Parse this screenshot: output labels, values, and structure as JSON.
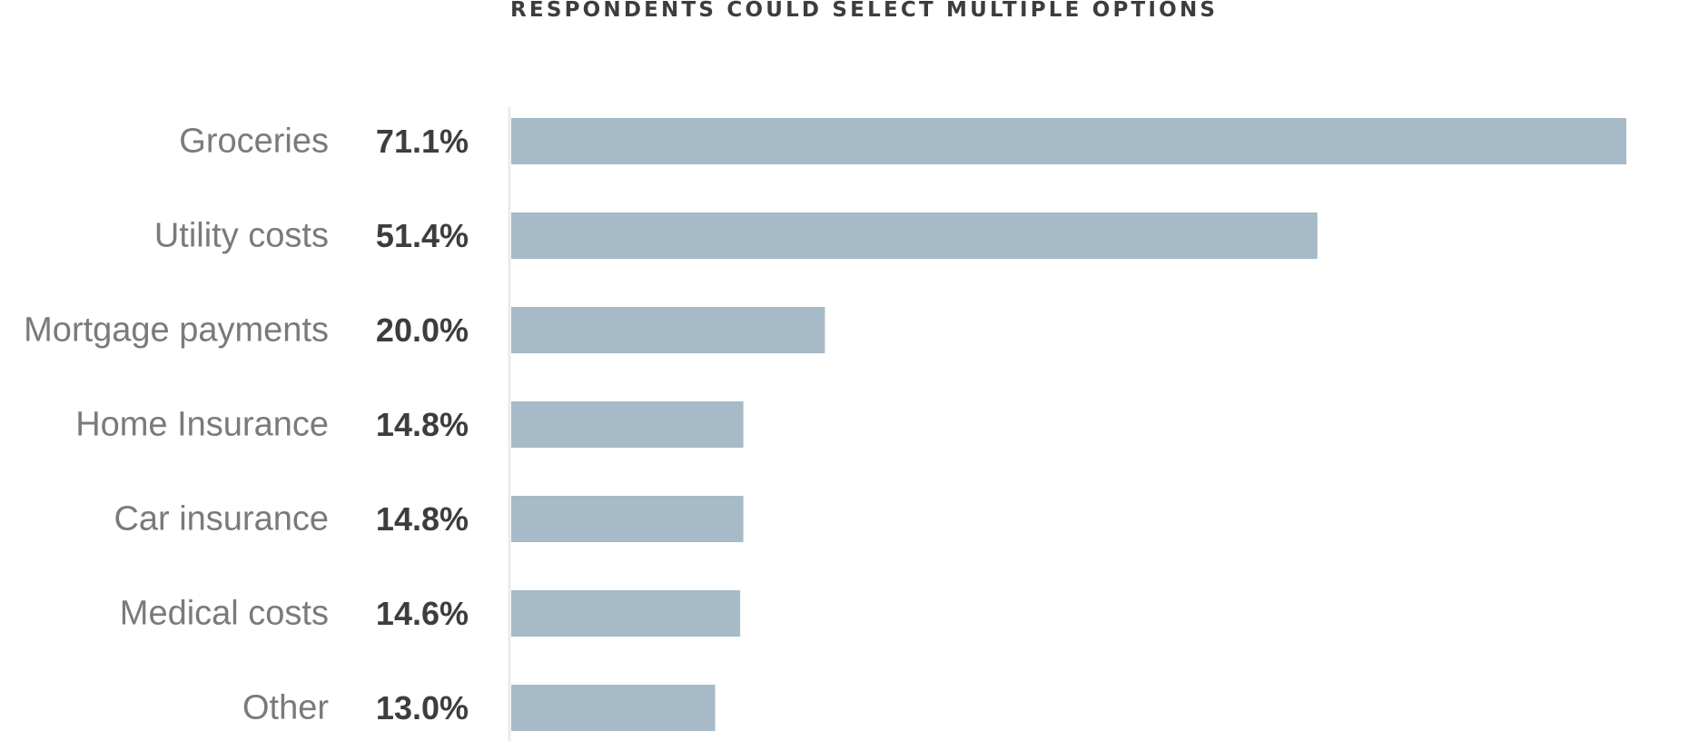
{
  "chart_data": {
    "type": "bar",
    "orientation": "horizontal",
    "subtitle": "RESPONDENTS COULD SELECT MULTIPLE OPTIONS",
    "categories": [
      "Groceries",
      "Utility costs",
      "Mortgage payments",
      "Home Insurance",
      "Car insurance",
      "Medical costs",
      "Other"
    ],
    "values": [
      71.1,
      51.4,
      20.0,
      14.8,
      14.8,
      14.6,
      13.0
    ],
    "value_labels": [
      "71.1%",
      "51.4%",
      "20.0%",
      "14.8%",
      "14.8%",
      "14.6%",
      "13.0%"
    ],
    "unit": "%",
    "xlim": [
      0,
      71.1
    ],
    "grid": false,
    "legend": "none",
    "bar_color": "#a6bac8",
    "label_color": "#7a7a7a",
    "value_color": "#3d3d3d"
  }
}
